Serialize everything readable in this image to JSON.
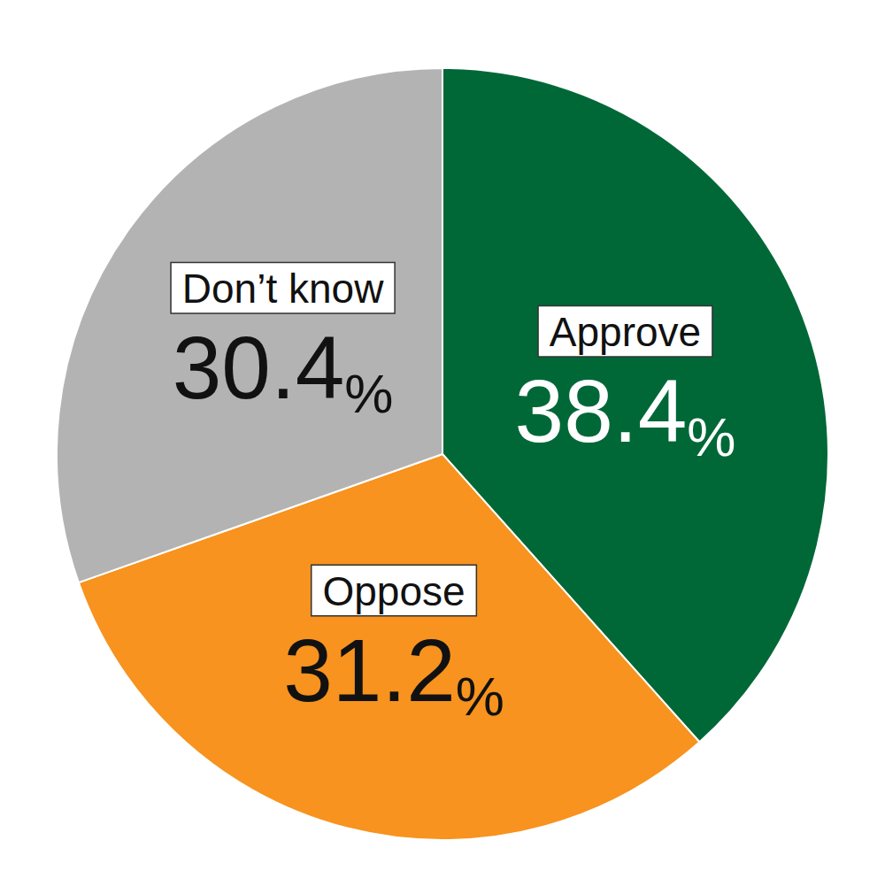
{
  "chart_data": {
    "type": "pie",
    "categories": [
      "Approve",
      "Oppose",
      "Don’t know"
    ],
    "values": [
      38.4,
      31.2,
      30.4
    ],
    "value_labels": [
      "38.4%",
      "31.2%",
      "30.4%"
    ],
    "colors": [
      "#006837",
      "#f7931e",
      "#b3b3b3"
    ],
    "data_labels": true
  }
}
